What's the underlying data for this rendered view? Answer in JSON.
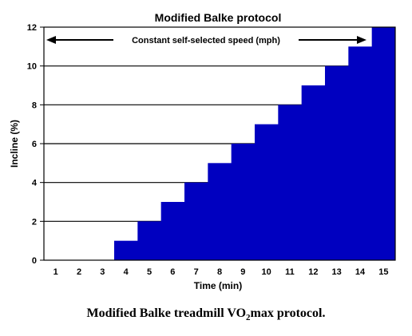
{
  "chart_data": {
    "type": "bar",
    "title": "Modified Balke protocol",
    "xlabel": "Time (min)",
    "ylabel": "Incline (%)",
    "categories": [
      1,
      2,
      3,
      4,
      5,
      6,
      7,
      8,
      9,
      10,
      11,
      12,
      13,
      14,
      15
    ],
    "values": [
      0,
      0,
      0,
      1,
      2,
      3,
      4,
      5,
      6,
      7,
      8,
      9,
      10,
      11,
      12
    ],
    "ylim": [
      0,
      12
    ],
    "yticks": [
      0,
      2,
      4,
      6,
      8,
      10,
      12
    ],
    "grid": "horizontal",
    "bar_color": "#0000c0",
    "annotation": "Constant self-selected speed (mph)"
  },
  "caption": {
    "prefix": "Modified Balke treadmill VO",
    "subscript": "2",
    "suffix": "max protocol."
  }
}
